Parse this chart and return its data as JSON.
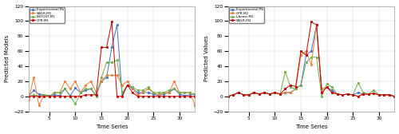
{
  "time_series": [
    1,
    2,
    3,
    4,
    5,
    6,
    7,
    8,
    9,
    10,
    11,
    12,
    13,
    14,
    15,
    16,
    17,
    18,
    19,
    20,
    21,
    22,
    23,
    24,
    25,
    26,
    27,
    28,
    29,
    30,
    31,
    32,
    33
  ],
  "m1": {
    "experimental": [
      0,
      8,
      3,
      2,
      1,
      2,
      1,
      10,
      1,
      11,
      5,
      8,
      10,
      1,
      20,
      25,
      65,
      95,
      1,
      15,
      10,
      5,
      5,
      5,
      3,
      1,
      3,
      5,
      10,
      3,
      1,
      2,
      3
    ],
    "swlr": [
      -5,
      25,
      -12,
      2,
      0,
      5,
      5,
      20,
      10,
      20,
      5,
      15,
      20,
      5,
      20,
      28,
      28,
      28,
      15,
      20,
      10,
      2,
      5,
      10,
      5,
      2,
      5,
      5,
      20,
      5,
      5,
      5,
      -12
    ],
    "lboost": [
      0,
      2,
      0,
      2,
      0,
      5,
      5,
      10,
      0,
      -10,
      5,
      10,
      10,
      0,
      25,
      45,
      45,
      48,
      5,
      15,
      12,
      8,
      8,
      12,
      5,
      5,
      5,
      8,
      10,
      5,
      5,
      5,
      3
    ],
    "gpr": [
      0,
      0,
      0,
      0,
      0,
      0,
      0,
      0,
      0,
      0,
      0,
      2,
      2,
      2,
      65,
      65,
      99,
      0,
      0,
      15,
      5,
      0,
      0,
      0,
      0,
      0,
      0,
      0,
      0,
      0,
      0,
      0,
      0
    ]
  },
  "m2": {
    "experimental": [
      0,
      2,
      5,
      2,
      2,
      5,
      3,
      5,
      3,
      5,
      3,
      5,
      5,
      10,
      15,
      55,
      60,
      95,
      10,
      12,
      8,
      3,
      2,
      3,
      2,
      5,
      3,
      3,
      4,
      2,
      2,
      2,
      0
    ],
    "gpr": [
      0,
      2,
      5,
      2,
      2,
      5,
      3,
      5,
      3,
      5,
      3,
      5,
      5,
      10,
      55,
      60,
      42,
      95,
      10,
      12,
      5,
      3,
      2,
      3,
      2,
      0,
      3,
      3,
      4,
      2,
      2,
      2,
      0
    ],
    "lboost": [
      0,
      2,
      5,
      2,
      2,
      5,
      3,
      5,
      3,
      5,
      3,
      33,
      12,
      10,
      15,
      45,
      52,
      52,
      0,
      17,
      12,
      3,
      2,
      3,
      2,
      18,
      5,
      3,
      8,
      2,
      2,
      2,
      0
    ],
    "swlr": [
      0,
      2,
      5,
      2,
      2,
      5,
      3,
      5,
      3,
      5,
      3,
      10,
      15,
      13,
      60,
      55,
      99,
      95,
      5,
      12,
      5,
      3,
      2,
      3,
      2,
      0,
      3,
      3,
      4,
      2,
      2,
      2,
      0
    ]
  },
  "colors": {
    "experimental": "#4472C4",
    "swlr_m1": "#ED7D31",
    "lboost_m1": "#70AD47",
    "gpr_m1": "#C00000",
    "gpr_m2": "#ED7D31",
    "lboost_m2": "#70AD47",
    "swlr_m2": "#C00000"
  },
  "ylim": [
    -20,
    120
  ],
  "yticks": [
    -20,
    0,
    20,
    40,
    60,
    80,
    100,
    120
  ],
  "xlabel": "Time Series",
  "ylabel_left": "Predicted Models",
  "ylabel_right": "Predicted Values",
  "legend_m1": [
    "Experimental Pb",
    "SWLR-M1",
    "LBOOST-M1",
    "GPR-M1"
  ],
  "legend_m2": [
    "Experimental Pb",
    "GPR-M2",
    "L-boost-M2",
    "SWLR-M2"
  ],
  "xticks": [
    5,
    10,
    15,
    20,
    25,
    30
  ],
  "xlim": [
    1,
    33
  ]
}
